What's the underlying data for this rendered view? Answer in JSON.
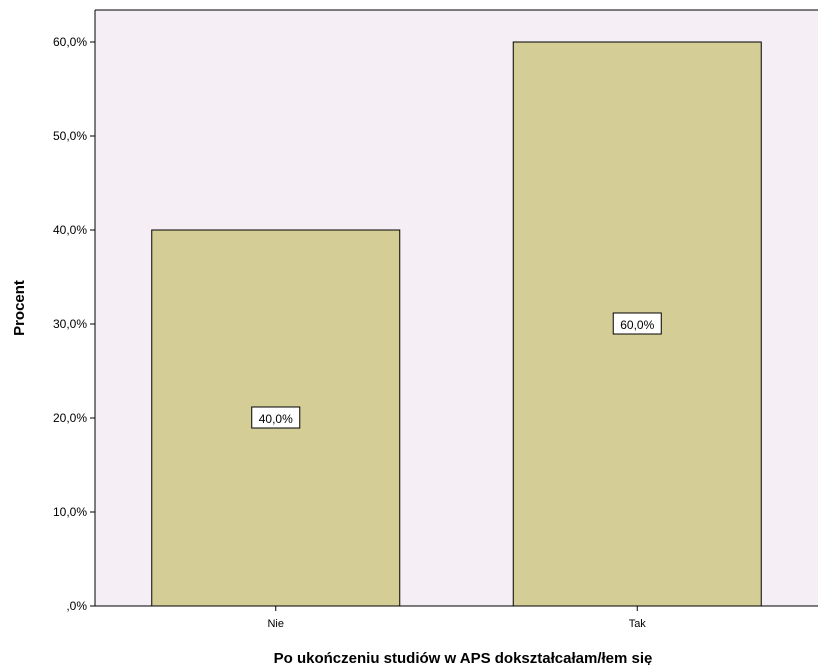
{
  "chart_data": {
    "type": "bar",
    "categories": [
      "Nie",
      "Tak"
    ],
    "values": [
      40.0,
      60.0
    ],
    "value_labels": [
      "40,0%",
      "60,0%"
    ],
    "xlabel": "Po ukończeniu studiów w APS dokształcałam/łem się",
    "ylabel": "Procent",
    "ylim": [
      0,
      64.0
    ],
    "yticks": [
      0,
      10,
      20,
      30,
      40,
      50,
      60
    ],
    "ytick_labels": [
      ",0%",
      "10,0%",
      "20,0%",
      "30,0%",
      "40,0%",
      "50,0%",
      "60,0%"
    ],
    "grid": false,
    "legend": "none",
    "colors": {
      "bar_fill": "#d5cd96",
      "bar_stroke": "#000000",
      "plot_background": "#f5eef4",
      "axis": "#000000"
    }
  }
}
